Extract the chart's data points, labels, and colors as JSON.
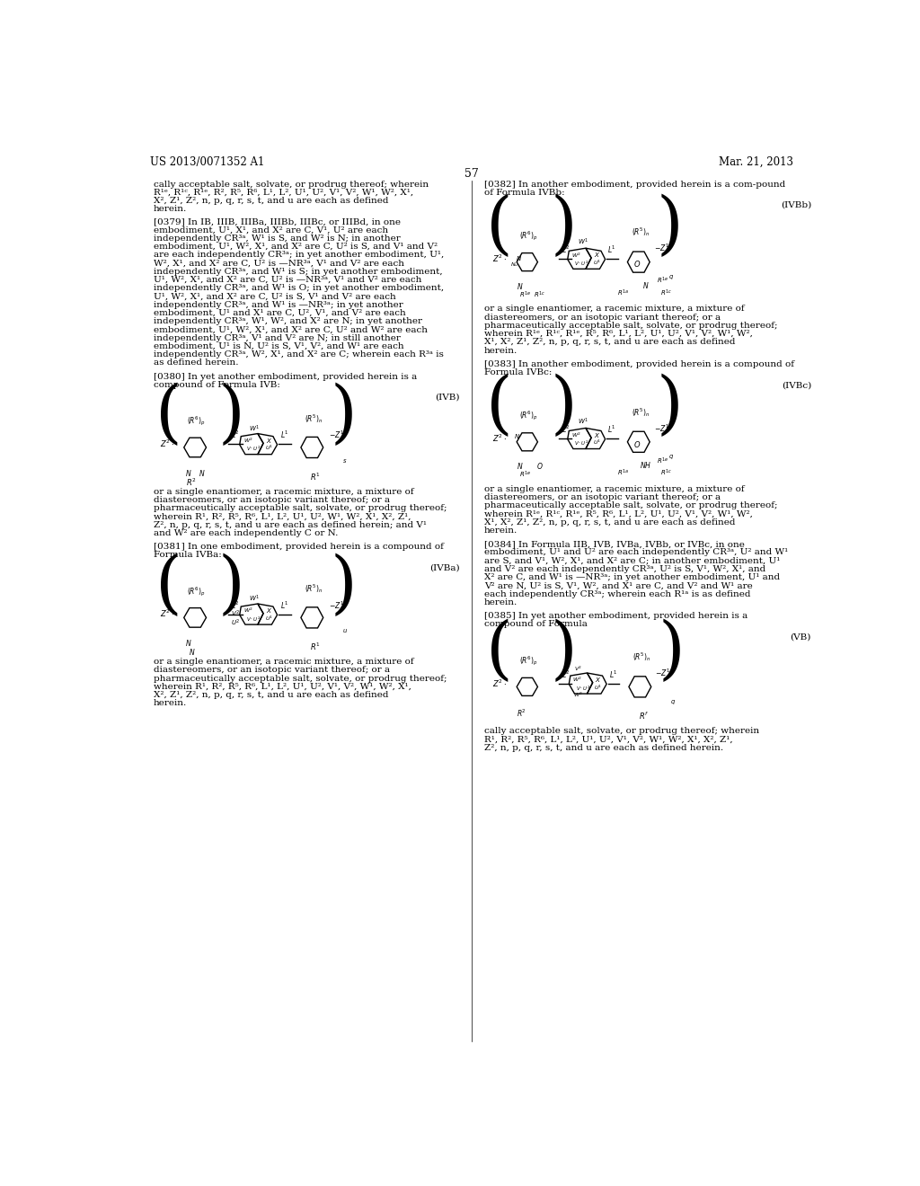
{
  "background_color": "#ffffff",
  "header_left": "US 2013/0071352 A1",
  "header_right": "Mar. 21, 2013",
  "page_number": "57"
}
